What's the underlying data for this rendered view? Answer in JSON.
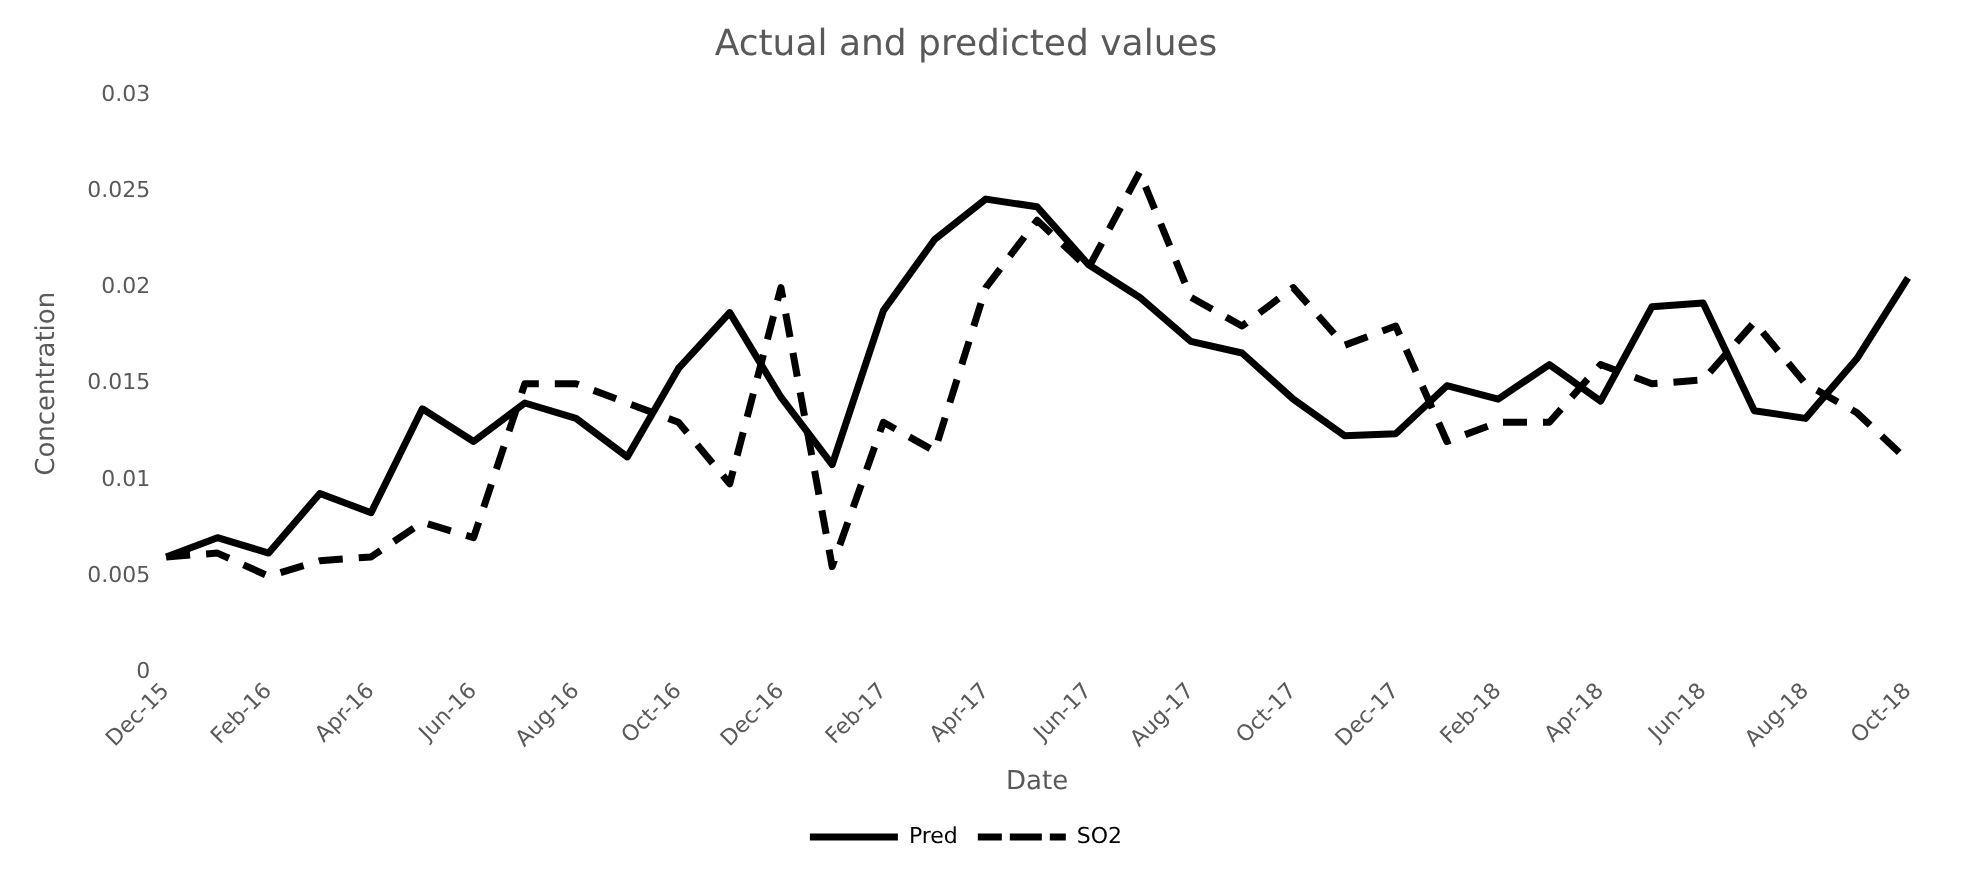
{
  "chart_data": {
    "type": "line",
    "title": "Actual and predicted values",
    "xlabel": "Date",
    "ylabel": "Concentration",
    "categories": [
      "Dec-15",
      null,
      "Feb-16",
      null,
      "Apr-16",
      null,
      "Jun-16",
      null,
      "Aug-16",
      null,
      "Oct-16",
      null,
      "Dec-16",
      null,
      "Feb-17",
      null,
      "Apr-17",
      null,
      "Jun-17",
      null,
      "Aug-17",
      null,
      "Oct-17",
      null,
      "Dec-17",
      null,
      "Feb-18",
      null,
      "Apr-18",
      null,
      "Jun-18",
      null,
      "Aug-18",
      null,
      "Oct-18"
    ],
    "series": [
      {
        "name": "Pred",
        "color": "#000000",
        "line_style": "solid",
        "values": [
          0.006,
          0.007,
          0.0062,
          0.0093,
          0.0083,
          0.0137,
          0.012,
          0.014,
          0.0132,
          0.0112,
          0.0158,
          0.0187,
          0.0143,
          0.0108,
          0.0188,
          0.0225,
          0.0246,
          0.0242,
          0.0212,
          0.0195,
          0.0172,
          0.0166,
          0.0142,
          0.0123,
          0.0124,
          0.0149,
          0.0142,
          0.016,
          0.0141,
          0.019,
          0.0192,
          0.0136,
          0.0132,
          0.0163,
          0.0205
        ]
      },
      {
        "name": "SO2",
        "color": "#000000",
        "line_style": "dashed",
        "values": [
          0.006,
          0.0062,
          0.005,
          0.0058,
          0.006,
          0.0078,
          0.007,
          0.015,
          0.015,
          0.014,
          0.013,
          0.0098,
          0.02,
          0.0055,
          0.013,
          0.0115,
          0.02,
          0.0235,
          0.021,
          0.026,
          0.0195,
          0.018,
          0.02,
          0.017,
          0.018,
          0.012,
          0.013,
          0.013,
          0.016,
          0.015,
          0.0152,
          0.0182,
          0.015,
          0.0135,
          0.011
        ]
      }
    ],
    "ylim": [
      0,
      0.03
    ],
    "yticks": [
      0,
      0.005,
      0.01,
      0.015,
      0.02,
      0.025,
      0.03
    ],
    "grid": false,
    "legend": "bottom",
    "marker": "none"
  }
}
